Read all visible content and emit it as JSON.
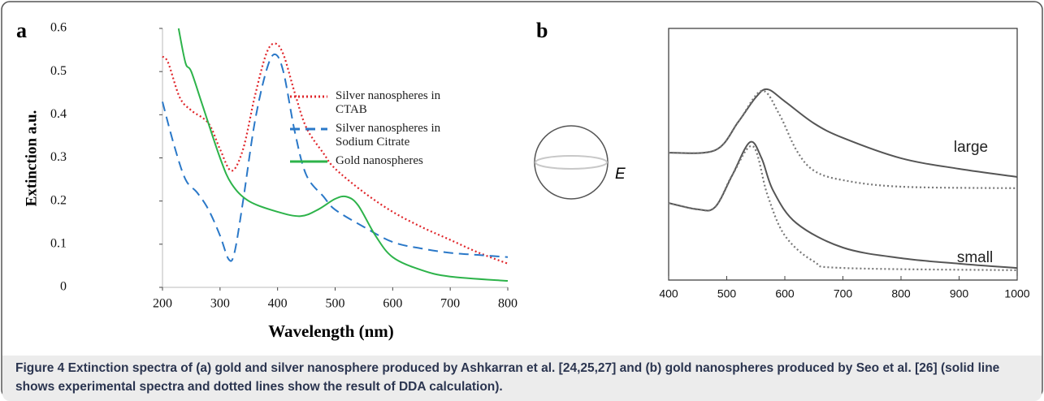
{
  "chart_data": [
    {
      "type": "line",
      "panel_label": "a",
      "xlabel": "Wavelength (nm)",
      "ylabel": "Extinction a.u.",
      "xlim": [
        200,
        800
      ],
      "ylim": [
        0,
        0.6
      ],
      "xticks": [
        200,
        300,
        400,
        500,
        600,
        700,
        800
      ],
      "yticks": [
        0,
        0.1,
        0.2,
        0.3,
        0.4,
        0.5,
        0.6
      ],
      "legend": "upper right",
      "series": [
        {
          "name": "Silver nanospheres in CTAB",
          "color": "#e0262b",
          "style": "dotted",
          "x": [
            200,
            210,
            230,
            250,
            280,
            300,
            320,
            340,
            360,
            380,
            395,
            410,
            430,
            450,
            480,
            500,
            550,
            600,
            650,
            700,
            750,
            800
          ],
          "values": [
            0.535,
            0.52,
            0.44,
            0.41,
            0.38,
            0.32,
            0.27,
            0.32,
            0.44,
            0.54,
            0.565,
            0.54,
            0.45,
            0.37,
            0.31,
            0.275,
            0.22,
            0.175,
            0.14,
            0.11,
            0.08,
            0.055
          ]
        },
        {
          "name": "Silver nanospheres in Sodium Citrate",
          "color": "#2a78c8",
          "style": "dashed",
          "x": [
            200,
            220,
            240,
            260,
            280,
            300,
            315,
            325,
            340,
            360,
            380,
            395,
            410,
            430,
            450,
            480,
            500,
            550,
            600,
            650,
            700,
            750,
            800
          ],
          "values": [
            0.43,
            0.33,
            0.25,
            0.22,
            0.18,
            0.12,
            0.065,
            0.08,
            0.2,
            0.38,
            0.5,
            0.54,
            0.5,
            0.36,
            0.26,
            0.21,
            0.18,
            0.14,
            0.105,
            0.09,
            0.08,
            0.075,
            0.07
          ]
        },
        {
          "name": "Gold nanospheres",
          "color": "#2db34a",
          "style": "solid",
          "x": [
            228,
            240,
            250,
            270,
            300,
            320,
            350,
            400,
            440,
            470,
            500,
            520,
            540,
            570,
            600,
            650,
            700,
            800
          ],
          "values": [
            0.6,
            0.52,
            0.5,
            0.42,
            0.3,
            0.24,
            0.2,
            0.175,
            0.165,
            0.18,
            0.205,
            0.21,
            0.19,
            0.12,
            0.07,
            0.04,
            0.025,
            0.015
          ]
        }
      ]
    },
    {
      "type": "line",
      "panel_label": "b",
      "ylabel": "E",
      "xlim": [
        400,
        1000
      ],
      "ylim": [
        0,
        1
      ],
      "xticks": [
        400,
        500,
        600,
        700,
        800,
        900,
        1000
      ],
      "annotations": [
        "large",
        "small"
      ],
      "series": [
        {
          "color": "#555555",
          "style": "solid",
          "x": [
            400,
            480,
            520,
            550,
            570,
            600,
            650,
            700,
            800,
            900,
            1000
          ],
          "values": [
            0.506,
            0.516,
            0.629,
            0.726,
            0.758,
            0.71,
            0.623,
            0.565,
            0.484,
            0.442,
            0.41
          ]
        },
        {
          "color": "#777777",
          "style": "dotted",
          "x": [
            400,
            480,
            520,
            560,
            590,
            620,
            650,
            700,
            800,
            1000
          ],
          "values": [
            0.506,
            0.516,
            0.629,
            0.752,
            0.661,
            0.516,
            0.435,
            0.397,
            0.371,
            0.365
          ]
        },
        {
          "color": "#555555",
          "style": "solid",
          "x": [
            400,
            450,
            480,
            510,
            540,
            560,
            580,
            620,
            700,
            800,
            900,
            1000
          ],
          "values": [
            0.306,
            0.281,
            0.29,
            0.419,
            0.548,
            0.484,
            0.355,
            0.226,
            0.129,
            0.087,
            0.065,
            0.048
          ]
        },
        {
          "color": "#777777",
          "style": "dotted",
          "x": [
            400,
            450,
            480,
            510,
            545,
            570,
            600,
            650,
            700,
            1000
          ],
          "values": [
            0.306,
            0.281,
            0.29,
            0.419,
            0.532,
            0.339,
            0.177,
            0.074,
            0.048,
            0.039
          ]
        }
      ]
    }
  ],
  "caption": {
    "label": "Figure 4",
    "text": "Extinction spectra of (a) gold and silver nanosphere produced by Ashkarran et al. [24,25,27] and (b) gold nanospheres produced by Seo et al. [26] (solid line shows experimental spectra and dotted lines show the result of DDA calculation)."
  }
}
